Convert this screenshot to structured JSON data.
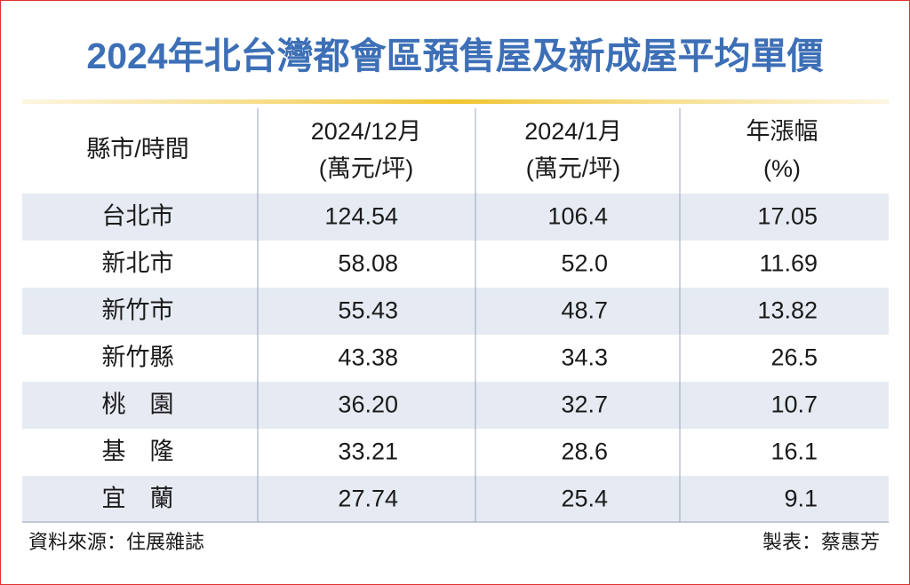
{
  "title": "2024年北台灣都會區預售屋及新成屋平均單價",
  "table": {
    "header": [
      [
        "縣市/時間"
      ],
      [
        "2024/12月",
        "(萬元/坪)"
      ],
      [
        "2024/1月",
        "(萬元/坪)"
      ],
      [
        "年漲幅",
        "(%)"
      ]
    ],
    "rows": [
      [
        "台北市",
        "124.54",
        "106.4",
        "17.05"
      ],
      [
        "新北市",
        "58.08",
        "52.0",
        "11.69"
      ],
      [
        "新竹市",
        "55.43",
        "48.7",
        "13.82"
      ],
      [
        "新竹縣",
        "43.38",
        "34.3",
        "26.5"
      ],
      [
        "桃　園",
        "36.20",
        "32.7",
        "10.7"
      ],
      [
        "基　隆",
        "33.21",
        "28.6",
        "16.1"
      ],
      [
        "宜　蘭",
        "27.74",
        "25.4",
        "9.1"
      ]
    ]
  },
  "source": "資料來源：住展雜誌",
  "credit": "製表：蔡惠芳"
}
